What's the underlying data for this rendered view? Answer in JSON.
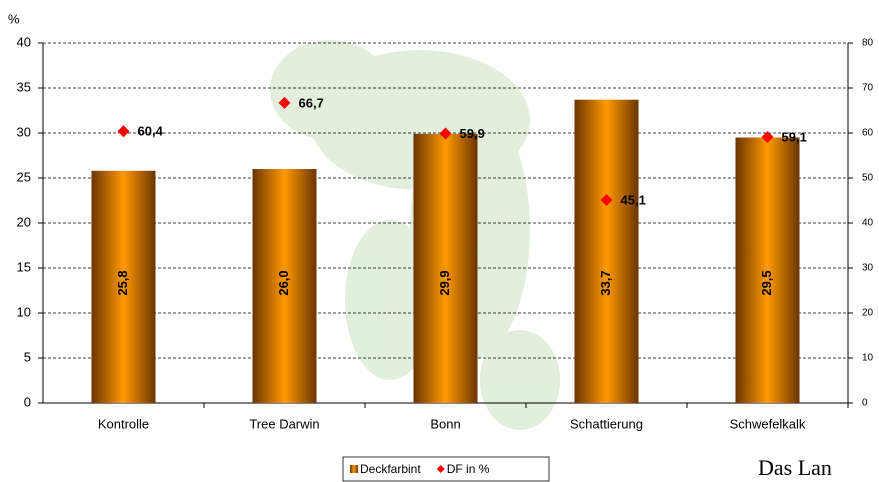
{
  "chart_data": {
    "type": "bar",
    "ylabel": "%",
    "categories": [
      "Kontrolle",
      "Tree Darwin",
      "Bonn",
      "Schattierung",
      "Schwefelkalk"
    ],
    "series": [
      {
        "name": "Deckfarbint",
        "color": "#ff9900",
        "values": [
          25.8,
          26.0,
          29.9,
          33.7,
          29.5
        ],
        "value_labels": [
          "25,8",
          "26,0",
          "29,9",
          "33,7",
          "29,5"
        ]
      },
      {
        "name": "DF in %",
        "color": "#ff0000",
        "marker": "diamond",
        "axis": "y2",
        "values": [
          60.4,
          66.7,
          59.9,
          45.1,
          59.1
        ],
        "value_labels": [
          "60,4",
          "66,7",
          "59,9",
          "45,1",
          "59,1"
        ]
      }
    ],
    "ylim": [
      0,
      40
    ],
    "yticks": [
      0,
      5,
      10,
      15,
      20,
      25,
      30,
      35,
      40
    ],
    "y2lim": [
      0,
      80
    ],
    "y2ticks": [
      0,
      10,
      20,
      30,
      40,
      50,
      60,
      70,
      80
    ],
    "grid": true,
    "legend": "bottom",
    "logo_text": "Das Lan"
  }
}
